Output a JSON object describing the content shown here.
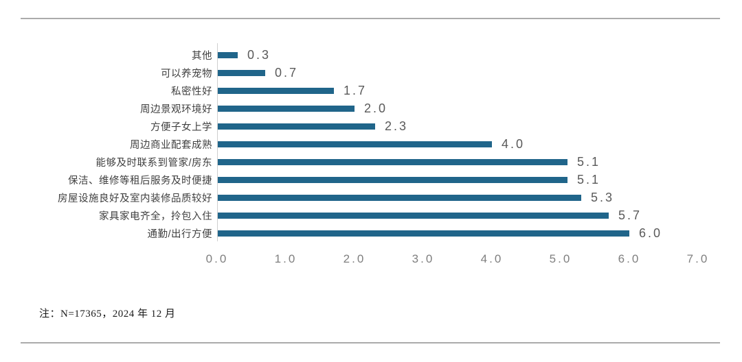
{
  "chart_data": {
    "type": "bar",
    "orientation": "horizontal",
    "title": "",
    "xlabel": "",
    "ylabel": "",
    "categories": [
      "其他",
      "可以养宠物",
      "私密性好",
      "周边景观环境好",
      "方便子女上学",
      "周边商业配套成熟",
      "能够及时联系到管家/房东",
      "保洁、维修等租后服务及时便捷",
      "房屋设施良好及室内装修品质较好",
      "家具家电齐全，拎包入住",
      "通勤/出行方便"
    ],
    "values": [
      0.3,
      0.7,
      1.7,
      2.0,
      2.3,
      4.0,
      5.1,
      5.1,
      5.3,
      5.7,
      6.0
    ],
    "xlim": [
      0,
      7
    ],
    "x_ticks": [
      "0.0",
      "1.0",
      "2.0",
      "3.0",
      "4.0",
      "5.0",
      "6.0",
      "7.0"
    ],
    "grid": false,
    "legend": false,
    "bar_color": "#20658a",
    "value_label_color": "#595959",
    "tick_label_color": "#7f7f7f"
  },
  "note": "注：N=17365，2024 年 12 月"
}
